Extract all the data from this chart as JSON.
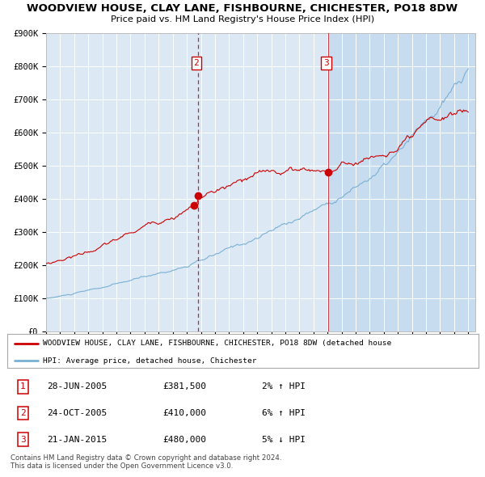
{
  "title": "WOODVIEW HOUSE, CLAY LANE, FISHBOURNE, CHICHESTER, PO18 8DW",
  "subtitle": "Price paid vs. HM Land Registry's House Price Index (HPI)",
  "plot_bg_color": "#dce9f5",
  "highlight_bg_color": "#c8dcf0",
  "ylim": [
    0,
    900000
  ],
  "yticks": [
    0,
    100000,
    200000,
    300000,
    400000,
    500000,
    600000,
    700000,
    800000,
    900000
  ],
  "ytick_labels": [
    "£0",
    "£100K",
    "£200K",
    "£300K",
    "£400K",
    "£500K",
    "£600K",
    "£700K",
    "£800K",
    "£900K"
  ],
  "year_start": 1995,
  "year_end": 2025,
  "hpi_color": "#7ab0d4",
  "price_color": "#cc0000",
  "sale1_year": 2005.49,
  "sale1_price": 381500,
  "sale2_year": 2005.82,
  "sale2_price": 410000,
  "sale3_year": 2015.05,
  "sale3_price": 480000,
  "vline1_date": 2005.82,
  "vline2_date": 2015.05,
  "legend_line1": "WOODVIEW HOUSE, CLAY LANE, FISHBOURNE, CHICHESTER, PO18 8DW (detached house",
  "legend_line2": "HPI: Average price, detached house, Chichester",
  "table_rows": [
    [
      "1",
      "28-JUN-2005",
      "£381,500",
      "2% ↑ HPI"
    ],
    [
      "2",
      "24-OCT-2005",
      "£410,000",
      "6% ↑ HPI"
    ],
    [
      "3",
      "21-JAN-2015",
      "£480,000",
      "5% ↓ HPI"
    ]
  ],
  "footer": "Contains HM Land Registry data © Crown copyright and database right 2024.\nThis data is licensed under the Open Government Licence v3.0."
}
